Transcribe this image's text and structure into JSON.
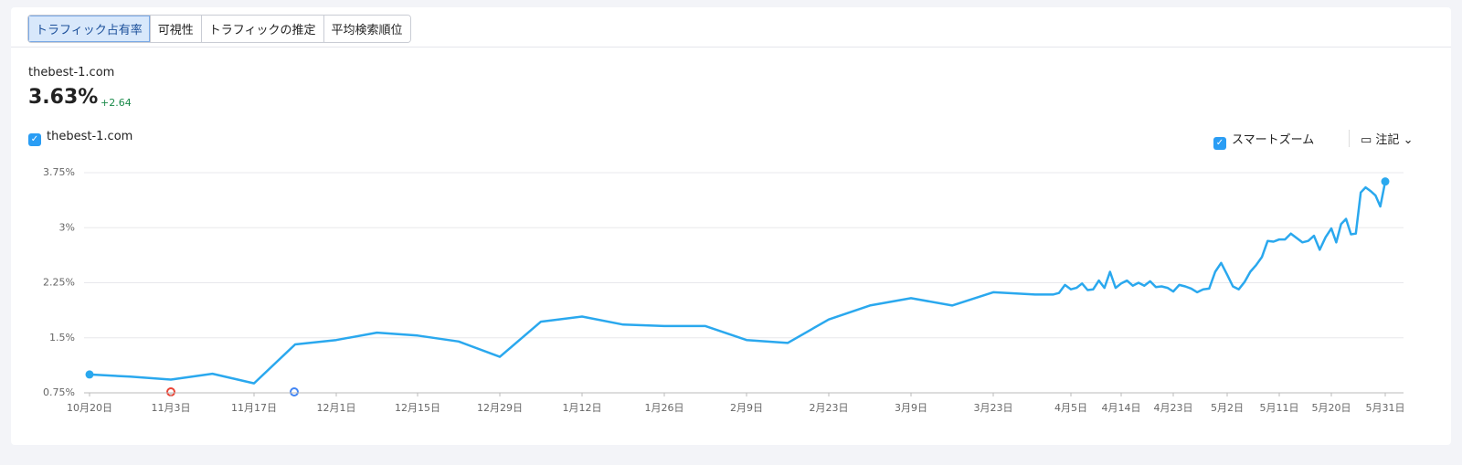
{
  "tabs": [
    "トラフィック占有率",
    "可視性",
    "トラフィックの推定",
    "平均検索順位"
  ],
  "summary": {
    "domain": "thebest-1.com",
    "value": "3.63%",
    "change": "+2.64"
  },
  "controls": {
    "smart_zoom": "スマートズーム",
    "notes": "注記"
  },
  "chart_data": {
    "type": "line",
    "x": [
      "10月20日",
      "10月27日",
      "11月3日",
      "11月10日",
      "11月17日",
      "11月24日",
      "12月1日",
      "12月8日",
      "12月15日",
      "12月22日",
      "12月29日",
      "1月5日",
      "1月12日",
      "1月19日",
      "1月26日",
      "2月2日",
      "2月9日",
      "2月16日",
      "2月23日",
      "3月2日",
      "3月9日",
      "3月16日",
      "3月23日",
      "3月30日",
      "4月2日",
      "4月3日",
      "4月4日",
      "4月5日",
      "4月6日",
      "4月7日",
      "4月8日",
      "4月9日",
      "4月10日",
      "4月11日",
      "4月12日",
      "4月13日",
      "4月14日",
      "4月15日",
      "4月16日",
      "4月17日",
      "4月18日",
      "4月19日",
      "4月20日",
      "4月21日",
      "4月22日",
      "4月23日",
      "4月24日",
      "4月25日",
      "4月26日",
      "4月27日",
      "4月28日",
      "4月29日",
      "4月30日",
      "5月1日",
      "5月2日",
      "5月3日",
      "5月4日",
      "5月5日",
      "5月6日",
      "5月7日",
      "5月8日",
      "5月9日",
      "5月10日",
      "5月11日",
      "5月12日",
      "5月13日",
      "5月14日",
      "5月15日",
      "5月16日",
      "5月17日",
      "5月18日",
      "5月19日",
      "5月20日",
      "5月21日",
      "5月22日",
      "5月23日",
      "5月24日",
      "5月25日",
      "5月26日",
      "5月27日",
      "5月28日",
      "5月29日",
      "5月30日",
      "5月31日"
    ],
    "series": [
      {
        "name": "thebest-1.com",
        "color": "#2aa8ee",
        "values": [
          1.0,
          0.97,
          0.93,
          1.01,
          0.88,
          1.41,
          1.47,
          1.57,
          1.53,
          1.45,
          1.24,
          1.72,
          1.79,
          1.68,
          1.66,
          1.66,
          1.47,
          1.43,
          1.75,
          1.94,
          2.04,
          1.94,
          2.12,
          2.09,
          2.09,
          2.11,
          2.22,
          2.16,
          2.18,
          2.24,
          2.15,
          2.16,
          2.28,
          2.18,
          2.4,
          2.18,
          2.24,
          2.28,
          2.21,
          2.25,
          2.21,
          2.27,
          2.19,
          2.2,
          2.18,
          2.13,
          2.22,
          2.2,
          2.17,
          2.12,
          2.16,
          2.17,
          2.4,
          2.52,
          2.36,
          2.2,
          2.16,
          2.26,
          2.4,
          2.49,
          2.6,
          2.82,
          2.81,
          2.84,
          2.84,
          2.92,
          2.86,
          2.8,
          2.82,
          2.89,
          2.7,
          2.87,
          2.99,
          2.8,
          3.05,
          3.12,
          2.91,
          2.92,
          3.48,
          3.55,
          3.5,
          3.44,
          3.29,
          3.63
        ]
      }
    ],
    "xticks": [
      "10月20日",
      "11月3日",
      "11月17日",
      "12月1日",
      "12月15日",
      "12月29日",
      "1月12日",
      "1月26日",
      "2月9日",
      "2月23日",
      "3月9日",
      "3月23日",
      "4月5日",
      "4月14日",
      "4月23日",
      "5月2日",
      "5月11日",
      "5月20日",
      "5月31日"
    ],
    "ylim": [
      0.75,
      3.75
    ],
    "yticks": [
      {
        "value": 0.75,
        "label": "0.75%"
      },
      {
        "value": 1.5,
        "label": "1.5%"
      },
      {
        "value": 2.25,
        "label": "2.25%"
      },
      {
        "value": 3,
        "label": "3%"
      },
      {
        "value": 3.75,
        "label": "3.75%"
      }
    ],
    "grid": true
  }
}
